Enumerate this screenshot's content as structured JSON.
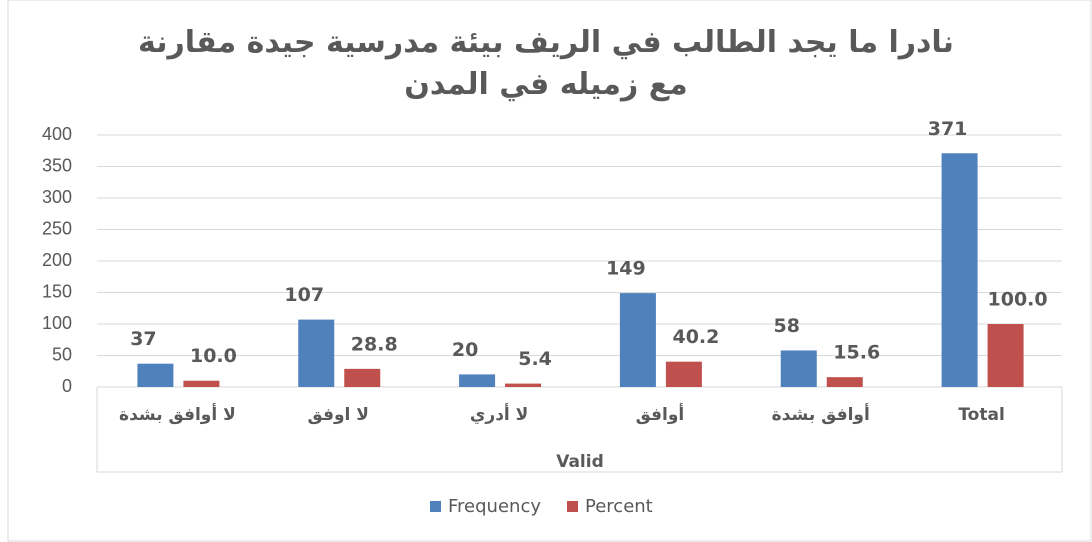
{
  "chart_data": {
    "type": "bar",
    "title": "نادرا ما يجد الطالب في الريف بيئة مدرسية جيدة مقارنة مع زميله في المدن",
    "xlabel": "Valid",
    "categories": [
      "لا أوافق بشدة",
      "لا اوفق",
      "لا أدري",
      "أوافق",
      "أوافق بشدة",
      "Total"
    ],
    "series": [
      {
        "name": "Frequency",
        "color": "#4f81bd",
        "values": [
          37,
          107,
          20,
          149,
          58,
          371
        ]
      },
      {
        "name": "Percent",
        "color": "#c0504d",
        "values": [
          10.0,
          28.8,
          5.4,
          40.2,
          15.6,
          100.0
        ],
        "value_labels": [
          "10.0",
          "28.8",
          "5.4",
          "40.2",
          "15.6",
          "100.0"
        ]
      }
    ],
    "ylim": [
      0,
      400
    ],
    "yticks": [
      0,
      50,
      100,
      150,
      200,
      250,
      300,
      350,
      400
    ],
    "grid": true,
    "legend": "bottom"
  }
}
